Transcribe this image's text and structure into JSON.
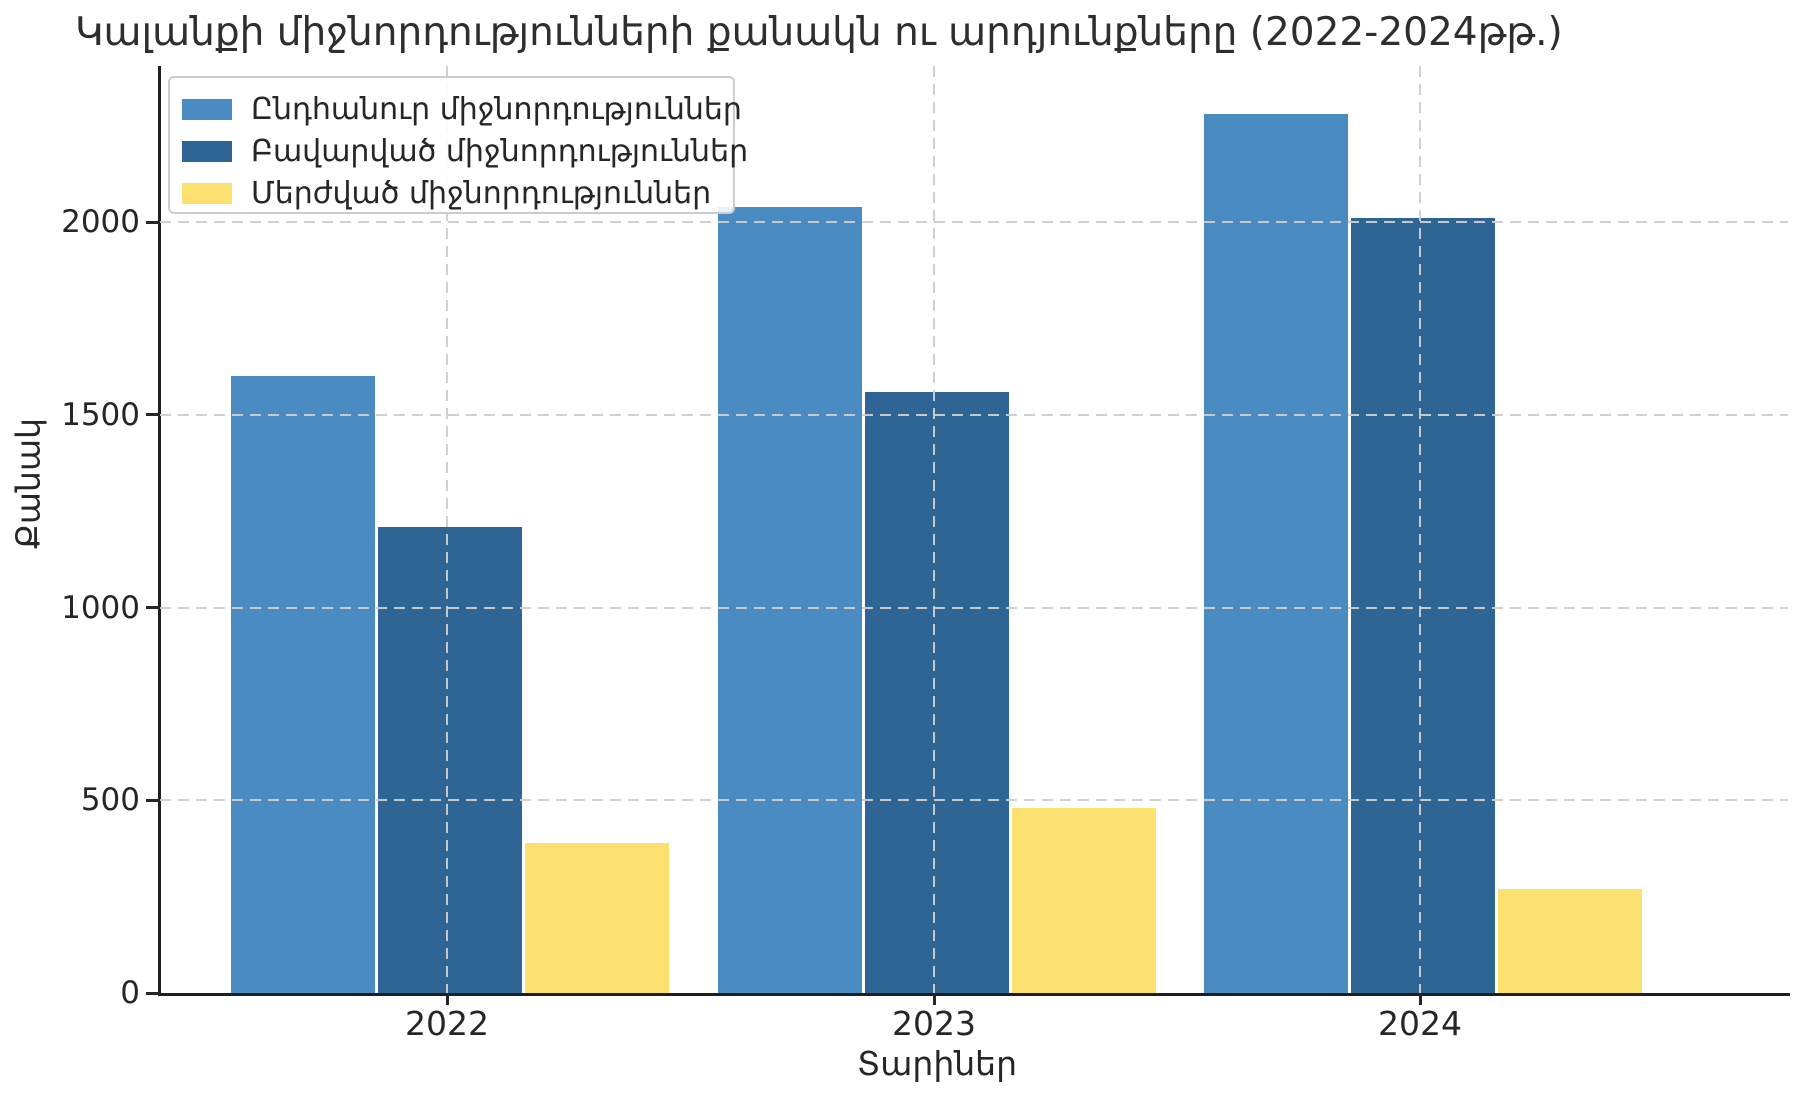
{
  "chart_data": {
    "type": "bar",
    "title": "Կալանքի միջնորդությունների քանակն ու արդյունքները (2022-2024թթ.)",
    "xlabel": "Տարիներ",
    "ylabel": "Քանակ",
    "categories": [
      "2022",
      "2023",
      "2024"
    ],
    "series": [
      {
        "name": "Ընդհանուր միջնորդություններ",
        "color": "#4a8bc2",
        "values": [
          1600,
          2040,
          2280
        ]
      },
      {
        "name": "Բավարված միջնորդություններ",
        "color": "#2e6594",
        "values": [
          1210,
          1560,
          2010
        ]
      },
      {
        "name": "Մերժված միջնորդություններ",
        "color": "#fce170",
        "values": [
          390,
          480,
          270
        ]
      }
    ],
    "yticks": [
      0,
      500,
      1000,
      1500,
      2000
    ],
    "ylim": [
      0,
      2400
    ],
    "grid": "dashed",
    "grid_color": "#cdcdcd",
    "axis_color": "#1f1f1f",
    "text_color": "#262626",
    "legend_position": "upper-left"
  }
}
